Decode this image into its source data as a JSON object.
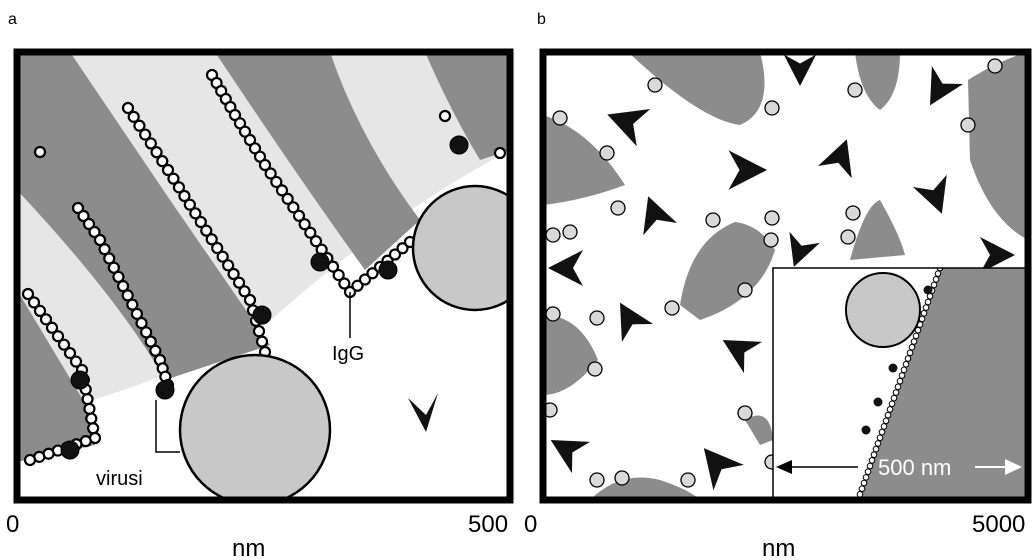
{
  "panel_a": {
    "letter": "a",
    "axis_min": "0",
    "axis_max": "500",
    "axis_unit": "nm",
    "label_igg": "IgG",
    "label_virus": "virusi"
  },
  "panel_b": {
    "letter": "b",
    "axis_min": "0",
    "axis_max": "5000",
    "axis_unit": "nm",
    "inset_scale": "500 nm"
  },
  "colors": {
    "dark_gray": "#8c8c8c",
    "light_gray": "#e6e6e6",
    "virus_fill": "#c8c8c8",
    "frame": "#000000"
  }
}
